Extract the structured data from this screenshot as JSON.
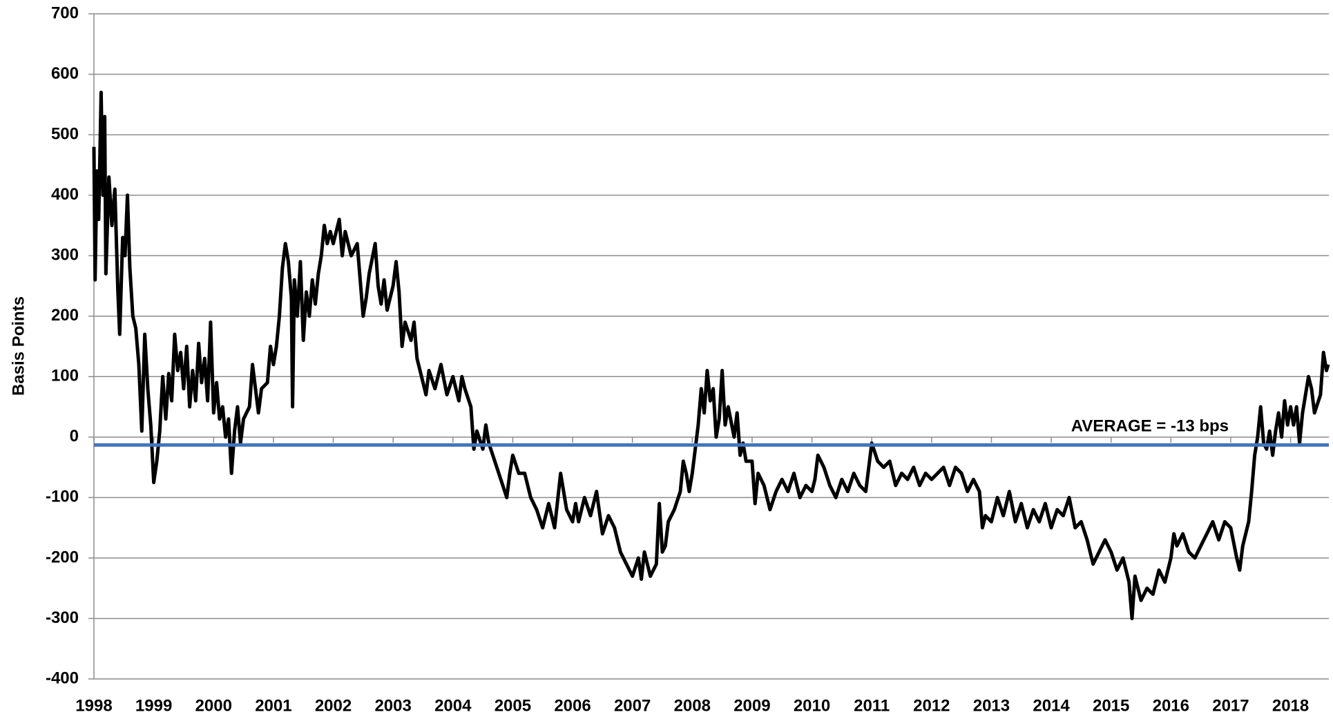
{
  "chart_data": {
    "type": "line",
    "y_label": "Basis Points",
    "xlim": [
      1998,
      2018.64
    ],
    "xticks": [
      1998,
      1999,
      2000,
      2001,
      2002,
      2003,
      2004,
      2005,
      2006,
      2007,
      2008,
      2009,
      2010,
      2011,
      2012,
      2013,
      2014,
      2015,
      2016,
      2017,
      2018
    ],
    "ylim": [
      -400,
      700
    ],
    "yticks": [
      -400,
      -300,
      -200,
      -100,
      0,
      100,
      200,
      300,
      400,
      500,
      600,
      700
    ],
    "grid": true,
    "color": "#000000",
    "x": [
      1998.0,
      1998.02,
      1998.05,
      1998.08,
      1998.12,
      1998.15,
      1998.18,
      1998.2,
      1998.25,
      1998.3,
      1998.35,
      1998.4,
      1998.43,
      1998.48,
      1998.52,
      1998.56,
      1998.6,
      1998.65,
      1998.7,
      1998.75,
      1998.8,
      1998.85,
      1998.9,
      1998.95,
      1999.0,
      1999.05,
      1999.1,
      1999.15,
      1999.2,
      1999.25,
      1999.3,
      1999.35,
      1999.4,
      1999.45,
      1999.5,
      1999.55,
      1999.6,
      1999.65,
      1999.7,
      1999.75,
      1999.8,
      1999.85,
      1999.9,
      1999.95,
      2000.0,
      2000.05,
      2000.1,
      2000.15,
      2000.2,
      2000.25,
      2000.3,
      2000.35,
      2000.4,
      2000.45,
      2000.5,
      2000.6,
      2000.65,
      2000.7,
      2000.75,
      2000.8,
      2000.9,
      2000.95,
      2001.0,
      2001.05,
      2001.1,
      2001.15,
      2001.2,
      2001.25,
      2001.3,
      2001.32,
      2001.35,
      2001.4,
      2001.45,
      2001.5,
      2001.55,
      2001.6,
      2001.65,
      2001.7,
      2001.75,
      2001.8,
      2001.85,
      2001.9,
      2001.95,
      2002.0,
      2002.1,
      2002.15,
      2002.2,
      2002.3,
      2002.4,
      2002.45,
      2002.5,
      2002.55,
      2002.6,
      2002.7,
      2002.75,
      2002.8,
      2002.85,
      2002.9,
      2003.0,
      2003.05,
      2003.1,
      2003.15,
      2003.2,
      2003.3,
      2003.35,
      2003.4,
      2003.5,
      2003.55,
      2003.6,
      2003.7,
      2003.8,
      2003.9,
      2004.0,
      2004.1,
      2004.15,
      2004.2,
      2004.3,
      2004.35,
      2004.4,
      2004.5,
      2004.55,
      2004.6,
      2004.7,
      2004.8,
      2004.9,
      2004.95,
      2005.0,
      2005.1,
      2005.2,
      2005.3,
      2005.4,
      2005.5,
      2005.6,
      2005.7,
      2005.8,
      2005.9,
      2006.0,
      2006.05,
      2006.1,
      2006.2,
      2006.3,
      2006.4,
      2006.5,
      2006.6,
      2006.7,
      2006.8,
      2006.9,
      2007.0,
      2007.1,
      2007.15,
      2007.2,
      2007.3,
      2007.4,
      2007.45,
      2007.5,
      2007.55,
      2007.6,
      2007.7,
      2007.8,
      2007.85,
      2007.9,
      2007.95,
      2008.0,
      2008.05,
      2008.1,
      2008.15,
      2008.2,
      2008.25,
      2008.3,
      2008.35,
      2008.4,
      2008.45,
      2008.5,
      2008.55,
      2008.6,
      2008.7,
      2008.75,
      2008.8,
      2008.85,
      2008.9,
      2009.0,
      2009.05,
      2009.1,
      2009.2,
      2009.3,
      2009.4,
      2009.5,
      2009.6,
      2009.7,
      2009.8,
      2009.9,
      2010.0,
      2010.05,
      2010.1,
      2010.2,
      2010.3,
      2010.4,
      2010.5,
      2010.6,
      2010.7,
      2010.8,
      2010.9,
      2011.0,
      2011.1,
      2011.2,
      2011.3,
      2011.4,
      2011.5,
      2011.6,
      2011.7,
      2011.8,
      2011.9,
      2012.0,
      2012.2,
      2012.3,
      2012.4,
      2012.5,
      2012.6,
      2012.7,
      2012.8,
      2012.85,
      2012.9,
      2013.0,
      2013.1,
      2013.2,
      2013.3,
      2013.4,
      2013.5,
      2013.6,
      2013.7,
      2013.8,
      2013.9,
      2014.0,
      2014.1,
      2014.2,
      2014.3,
      2014.4,
      2014.5,
      2014.6,
      2014.7,
      2014.8,
      2014.9,
      2015.0,
      2015.1,
      2015.2,
      2015.3,
      2015.35,
      2015.4,
      2015.5,
      2015.6,
      2015.7,
      2015.8,
      2015.9,
      2016.0,
      2016.05,
      2016.1,
      2016.2,
      2016.3,
      2016.4,
      2016.5,
      2016.6,
      2016.7,
      2016.8,
      2016.9,
      2017.0,
      2017.1,
      2017.15,
      2017.2,
      2017.3,
      2017.35,
      2017.4,
      2017.45,
      2017.5,
      2017.55,
      2017.6,
      2017.65,
      2017.7,
      2017.75,
      2017.8,
      2017.85,
      2017.9,
      2017.95,
      2018.0,
      2018.05,
      2018.1,
      2018.15,
      2018.2,
      2018.3,
      2018.35,
      2018.4,
      2018.5,
      2018.55,
      2018.6,
      2018.63
    ],
    "values": [
      480,
      260,
      440,
      360,
      570,
      400,
      530,
      270,
      430,
      350,
      410,
      240,
      170,
      330,
      300,
      400,
      280,
      200,
      180,
      120,
      10,
      170,
      80,
      20,
      -75,
      -40,
      10,
      100,
      30,
      105,
      60,
      170,
      110,
      140,
      80,
      150,
      50,
      110,
      60,
      155,
      90,
      130,
      60,
      190,
      40,
      90,
      30,
      50,
      0,
      30,
      -60,
      10,
      50,
      -10,
      30,
      50,
      120,
      80,
      40,
      80,
      90,
      150,
      120,
      150,
      200,
      280,
      320,
      290,
      230,
      50,
      260,
      200,
      290,
      160,
      240,
      200,
      260,
      220,
      270,
      300,
      350,
      320,
      340,
      320,
      360,
      300,
      340,
      300,
      320,
      260,
      200,
      230,
      270,
      320,
      250,
      220,
      260,
      210,
      250,
      290,
      240,
      150,
      190,
      160,
      190,
      130,
      90,
      70,
      110,
      80,
      120,
      70,
      100,
      60,
      100,
      80,
      50,
      -20,
      10,
      -20,
      20,
      -10,
      -40,
      -70,
      -100,
      -60,
      -30,
      -60,
      -60,
      -100,
      -120,
      -150,
      -110,
      -150,
      -60,
      -120,
      -140,
      -110,
      -140,
      -100,
      -130,
      -90,
      -160,
      -130,
      -150,
      -190,
      -210,
      -230,
      -200,
      -235,
      -190,
      -230,
      -210,
      -110,
      -190,
      -180,
      -140,
      -120,
      -90,
      -40,
      -60,
      -90,
      -60,
      -20,
      20,
      80,
      40,
      110,
      60,
      80,
      0,
      30,
      110,
      20,
      50,
      0,
      40,
      -30,
      -10,
      -40,
      -40,
      -110,
      -60,
      -80,
      -120,
      -90,
      -70,
      -90,
      -60,
      -100,
      -80,
      -90,
      -70,
      -30,
      -50,
      -80,
      -100,
      -70,
      -90,
      -60,
      -80,
      -90,
      -10,
      -40,
      -50,
      -40,
      -80,
      -60,
      -70,
      -50,
      -80,
      -60,
      -70,
      -50,
      -80,
      -50,
      -60,
      -90,
      -70,
      -90,
      -150,
      -130,
      -140,
      -100,
      -130,
      -90,
      -140,
      -110,
      -150,
      -120,
      -140,
      -110,
      -150,
      -120,
      -130,
      -100,
      -150,
      -140,
      -170,
      -210,
      -190,
      -170,
      -190,
      -220,
      -200,
      -240,
      -300,
      -230,
      -270,
      -250,
      -260,
      -220,
      -240,
      -200,
      -160,
      -180,
      -160,
      -190,
      -200,
      -180,
      -160,
      -140,
      -170,
      -140,
      -150,
      -200,
      -220,
      -180,
      -140,
      -90,
      -30,
      0,
      50,
      -10,
      -20,
      10,
      -30,
      10,
      40,
      0,
      60,
      20,
      50,
      20,
      50,
      -10,
      40,
      100,
      80,
      40,
      70,
      140,
      110,
      120
    ],
    "average": {
      "value": -13,
      "label": "AVERAGE = -13 bps",
      "color": "#4472c4"
    }
  }
}
